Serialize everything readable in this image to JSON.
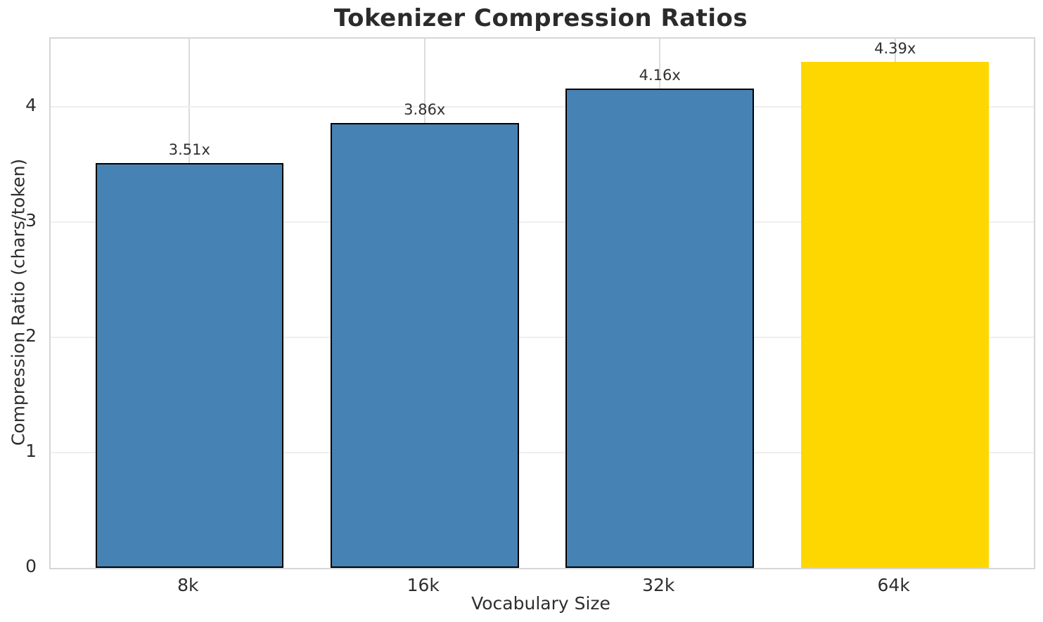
{
  "chart_data": {
    "type": "bar",
    "title": "Tokenizer Compression Ratios",
    "xlabel": "Vocabulary Size",
    "ylabel": "Compression Ratio (chars/token)",
    "categories": [
      "8k",
      "16k",
      "32k",
      "64k"
    ],
    "values": [
      3.51,
      3.86,
      4.16,
      4.39
    ],
    "bar_labels": [
      "3.51x",
      "3.86x",
      "4.16x",
      "4.39x"
    ],
    "series": [
      {
        "name": "Compression Ratio",
        "values": [
          3.51,
          3.86,
          4.16,
          4.39
        ]
      }
    ],
    "bar_colors": [
      "#4682B4",
      "#4682B4",
      "#4682B4",
      "#FFD700"
    ],
    "bar_edge_colors": [
      "#000000",
      "#000000",
      "#000000",
      "none"
    ],
    "highlight_index": 3,
    "yticks": [
      0,
      1,
      2,
      3,
      4
    ],
    "ylim": [
      0,
      4.59
    ],
    "grid": true,
    "legend_position": "none"
  },
  "colors": {
    "bar_default": "#4682B4",
    "bar_highlight": "#FFD700",
    "bar_edge": "#000000",
    "grid_horizontal": "#efefef",
    "grid_vertical": "#dcdcdc",
    "spine": "#d6d6d6",
    "text": "#2e2e2e",
    "title_text": "#2b2b2b"
  }
}
